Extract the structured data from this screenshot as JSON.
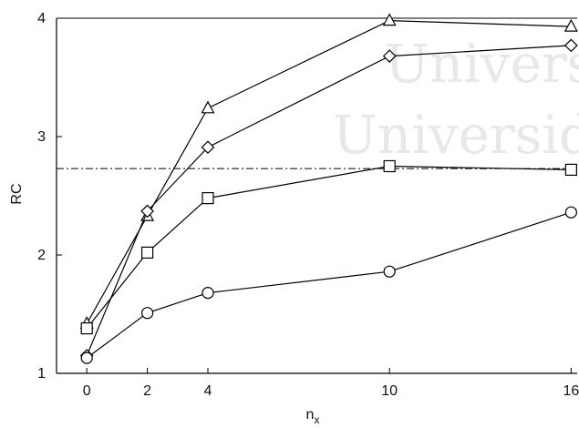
{
  "chart_data": {
    "type": "line",
    "title": "",
    "xlabel": "n_x",
    "ylabel": "RC",
    "xlim": [
      -1,
      16.2
    ],
    "ylim": [
      1,
      4
    ],
    "xticks": [
      0,
      2,
      4,
      10,
      16
    ],
    "yticks": [
      1,
      2,
      3,
      4
    ],
    "x": [
      0,
      2,
      4,
      10,
      16
    ],
    "series": [
      {
        "marker": "triangle",
        "values": [
          1.42,
          2.33,
          3.24,
          3.98,
          3.93
        ]
      },
      {
        "marker": "diamond",
        "values": [
          1.15,
          2.37,
          2.91,
          3.68,
          3.77
        ]
      },
      {
        "marker": "square",
        "values": [
          1.38,
          2.02,
          2.48,
          2.75,
          2.72
        ]
      },
      {
        "marker": "circle",
        "values": [
          1.13,
          1.51,
          1.68,
          1.86,
          2.36
        ]
      }
    ],
    "reference_lines": [
      {
        "style": "solid",
        "y": 4.0
      },
      {
        "style": "dash-dot",
        "y": 2.73
      }
    ],
    "watermark_lines": [
      "Universi",
      "Universid"
    ],
    "grid": false,
    "legend": "none",
    "colors": {
      "axis": "#000000",
      "line": "#000000",
      "marker_fill": "#ffffff",
      "watermark": "#e8e8e8"
    }
  }
}
